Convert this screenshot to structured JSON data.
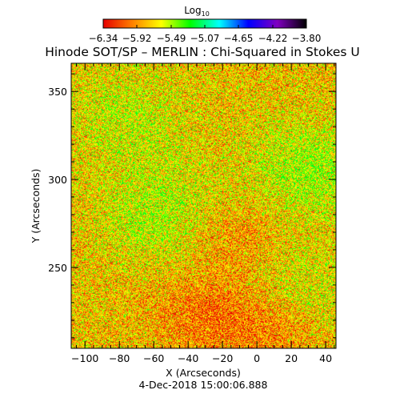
{
  "chart_data": {
    "type": "heatmap",
    "title": "Hinode SOT/SP – MERLIN : Chi-Squared in Stokes U",
    "xlabel": "X (Arcseconds)",
    "ylabel": "Y (Arcseconds)",
    "timestamp": "4-Dec-2018 15:00:06.888",
    "xlim": [
      -108,
      46
    ],
    "ylim": [
      204,
      366
    ],
    "x_ticks": [
      -100,
      -80,
      -60,
      -40,
      -20,
      0,
      20,
      40
    ],
    "y_ticks": [
      250,
      300,
      350
    ],
    "colorbar": {
      "label": "Log",
      "label_subscript": "10",
      "min": -6.34,
      "max": -3.8,
      "tick_values": [
        -6.34,
        -5.92,
        -5.49,
        -5.07,
        -4.65,
        -4.22,
        -3.8
      ],
      "tick_labels": [
        "−6.34",
        "−5.92",
        "−5.49",
        "−5.07",
        "−4.65",
        "−4.22",
        "−3.80"
      ],
      "colormap_stops": [
        "#e60000",
        "#ff8000",
        "#ffff00",
        "#00ff00",
        "#00ffff",
        "#0000ff",
        "#8000c0",
        "#000000"
      ]
    },
    "field": {
      "description_value_range": [
        -6.34,
        -5.2
      ],
      "greener_regions": [
        {
          "x": -55,
          "y": 280,
          "level": 0.55
        },
        {
          "x": 30,
          "y": 305,
          "level": 0.6
        },
        {
          "x": -75,
          "y": 335,
          "level": 0.4
        },
        {
          "x": 25,
          "y": 232,
          "level": 0.4
        }
      ],
      "redder_regions": [
        {
          "x": -30,
          "y": 225,
          "level": 0.45
        },
        {
          "x": -15,
          "y": 270,
          "level": 0.35
        },
        {
          "x": 10,
          "y": 215,
          "level": 0.5
        }
      ]
    }
  }
}
